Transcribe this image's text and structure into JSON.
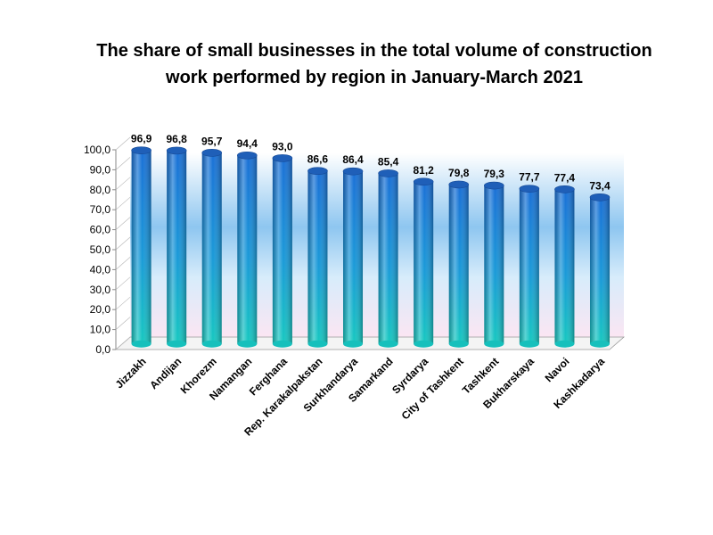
{
  "chart_data": {
    "type": "bar",
    "title_lines": [
      "The share of small businesses in the total volume of construction",
      "work performed by region in January-March 2021"
    ],
    "categories": [
      "Jizzakh",
      "Andijan",
      "Khorezm",
      "Namangan",
      "Ferghana",
      "Rep. Karakalpakstan",
      "Surkhandarya",
      "Samarkand",
      "Syrdarya",
      "City of Tashkent",
      "Tashkent",
      "Bukharskaya",
      "Navoi",
      "Kashkadarya"
    ],
    "values": [
      96.9,
      96.8,
      95.7,
      94.4,
      93.0,
      86.6,
      86.4,
      85.4,
      81.2,
      79.8,
      79.3,
      77.7,
      77.4,
      73.4
    ],
    "value_labels": [
      "96,9",
      "96,8",
      "95,7",
      "94,4",
      "93,0",
      "86,6",
      "86,4",
      "85,4",
      "81,2",
      "79,8",
      "79,3",
      "77,7",
      "77,4",
      "73,4"
    ],
    "ylim": [
      0,
      100
    ],
    "y_ticks": [
      "0,0",
      "10,0",
      "20,0",
      "30,0",
      "40,0",
      "50,0",
      "60,0",
      "70,0",
      "80,0",
      "90,0",
      "100,0"
    ],
    "xlabel": "",
    "ylabel": "",
    "grid": false,
    "legend": "none",
    "colors": {
      "bar_top": "#1a6fd6",
      "bar_bottom": "#16c8c0",
      "wall_top": "#8ec6f0",
      "wall_bottom": "#fbe6f3"
    }
  }
}
